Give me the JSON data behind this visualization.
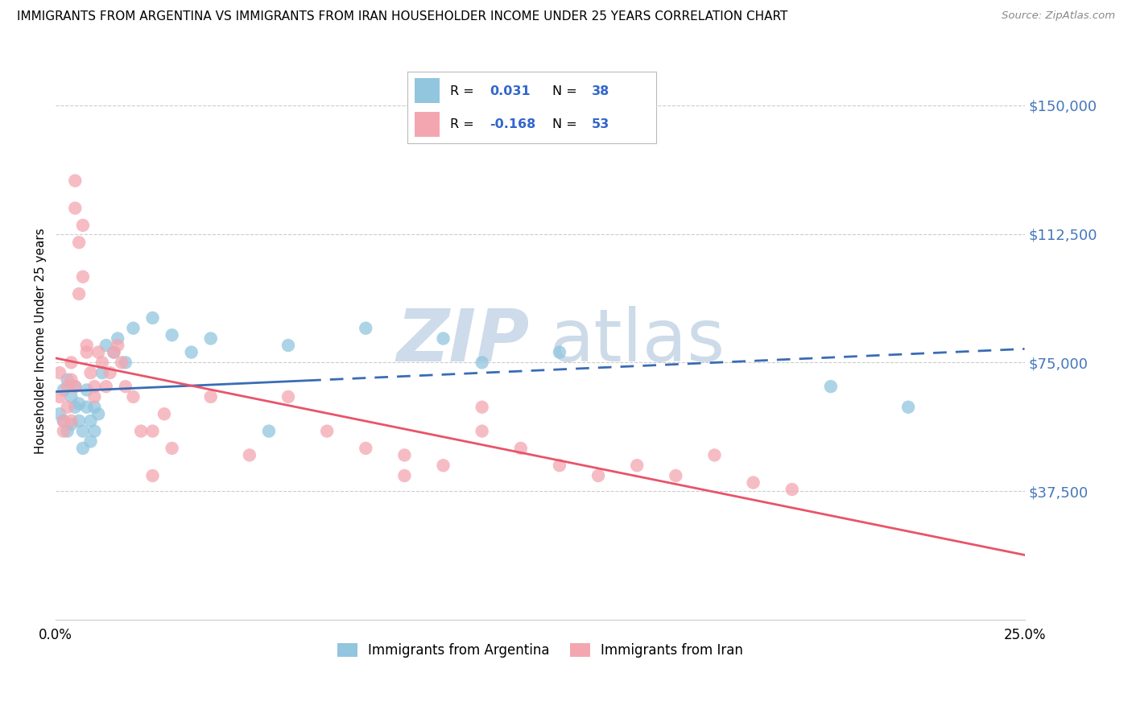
{
  "title": "IMMIGRANTS FROM ARGENTINA VS IMMIGRANTS FROM IRAN HOUSEHOLDER INCOME UNDER 25 YEARS CORRELATION CHART",
  "source": "Source: ZipAtlas.com",
  "ylabel": "Householder Income Under 25 years",
  "xlim": [
    0.0,
    0.25
  ],
  "ylim": [
    0,
    162500
  ],
  "yticks": [
    0,
    37500,
    75000,
    112500,
    150000
  ],
  "ytick_labels": [
    "",
    "$37,500",
    "$75,000",
    "$112,500",
    "$150,000"
  ],
  "argentina_color": "#92C5DE",
  "iran_color": "#F4A6B0",
  "argentina_R": 0.031,
  "argentina_N": 38,
  "iran_R": -0.168,
  "iran_N": 53,
  "argentina_trend_color": "#3A6CB5",
  "iran_trend_color": "#E8546A",
  "legend_label_argentina": "Immigrants from Argentina",
  "legend_label_iran": "Immigrants from Iran",
  "argentina_x": [
    0.001,
    0.002,
    0.002,
    0.003,
    0.003,
    0.004,
    0.004,
    0.005,
    0.005,
    0.006,
    0.006,
    0.007,
    0.007,
    0.008,
    0.008,
    0.009,
    0.009,
    0.01,
    0.01,
    0.011,
    0.012,
    0.013,
    0.015,
    0.016,
    0.018,
    0.02,
    0.025,
    0.03,
    0.035,
    0.04,
    0.055,
    0.06,
    0.08,
    0.1,
    0.11,
    0.13,
    0.2,
    0.22
  ],
  "argentina_y": [
    60000,
    58000,
    67000,
    55000,
    70000,
    65000,
    57000,
    62000,
    68000,
    58000,
    63000,
    55000,
    50000,
    62000,
    67000,
    58000,
    52000,
    62000,
    55000,
    60000,
    72000,
    80000,
    78000,
    82000,
    75000,
    85000,
    88000,
    83000,
    78000,
    82000,
    55000,
    80000,
    85000,
    82000,
    75000,
    78000,
    68000,
    62000
  ],
  "iran_x": [
    0.001,
    0.001,
    0.002,
    0.002,
    0.003,
    0.003,
    0.004,
    0.004,
    0.004,
    0.005,
    0.005,
    0.005,
    0.006,
    0.006,
    0.007,
    0.007,
    0.008,
    0.008,
    0.009,
    0.01,
    0.01,
    0.011,
    0.012,
    0.013,
    0.014,
    0.015,
    0.016,
    0.017,
    0.018,
    0.02,
    0.022,
    0.025,
    0.028,
    0.03,
    0.04,
    0.05,
    0.06,
    0.07,
    0.08,
    0.09,
    0.1,
    0.11,
    0.12,
    0.13,
    0.14,
    0.15,
    0.16,
    0.17,
    0.18,
    0.19,
    0.11,
    0.025,
    0.09
  ],
  "iran_y": [
    65000,
    72000,
    58000,
    55000,
    68000,
    62000,
    75000,
    70000,
    58000,
    68000,
    120000,
    128000,
    110000,
    95000,
    100000,
    115000,
    80000,
    78000,
    72000,
    68000,
    65000,
    78000,
    75000,
    68000,
    72000,
    78000,
    80000,
    75000,
    68000,
    65000,
    55000,
    55000,
    60000,
    50000,
    65000,
    48000,
    65000,
    55000,
    50000,
    48000,
    45000,
    55000,
    50000,
    45000,
    42000,
    45000,
    42000,
    48000,
    40000,
    38000,
    62000,
    42000,
    42000
  ]
}
